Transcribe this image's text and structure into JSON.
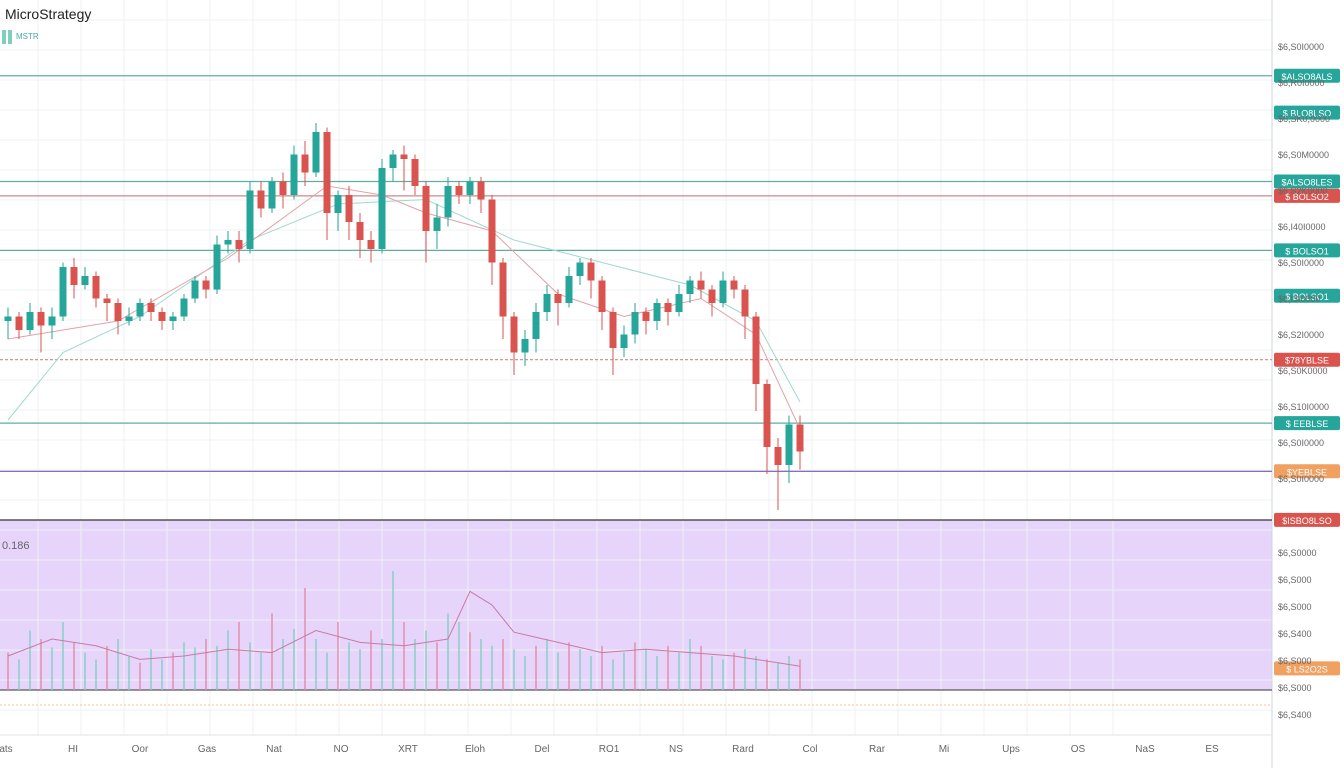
{
  "window": {
    "title": "MicroStrategy",
    "legend_line1": "MSTR",
    "legend_line2": "",
    "osc_value": "0.186"
  },
  "colors": {
    "up": "#26a69a",
    "down": "#d9534f",
    "grid": "#edf0f3",
    "teal_line": "#5fae9f",
    "red_line": "#c98a8a",
    "purple_line": "#7a5ab0",
    "osc_bg": "#e7d4fb",
    "badge_teal": "#26a69a",
    "badge_red": "#d9534f",
    "badge_orange": "#f0a060"
  },
  "chart_data": {
    "type": "candlestick",
    "price_ylim": [
      0,
      100
    ],
    "osc_ylim": [
      0,
      100
    ],
    "x_tick_labels": [
      "ats",
      "HI",
      "Oor",
      "Gas",
      "Nat",
      "NO",
      "XRT",
      "Eloh",
      "Del",
      "RO1",
      "NS",
      "Rard",
      "Col",
      "Rar",
      "Mi",
      "Ups",
      "OS",
      "NaS",
      "ES"
    ],
    "y_tick_labels": [
      "$6,S0I0000",
      "$6,R0I0000",
      "$6,SK0,0000",
      "$6,S0M0000",
      "$6,S2K0000",
      "$6,I40I0000",
      "$6,S0I0000",
      "$6,I3I0000",
      "$6,S2I0000",
      "$6,S0K0000",
      "$6,S10I0000",
      "$6,S0I0000",
      "$6,S0I0000"
    ],
    "osc_tick_labels": [
      "$6,S0000",
      "$6,S000",
      "$6,S000",
      "$6,S400",
      "$6,S000",
      "$6,S000",
      "$6,S400"
    ],
    "hlines": [
      {
        "label": "$ALSO8ALS",
        "level": 96.5,
        "color": "teal"
      },
      {
        "label": "$ALSO8LES",
        "level": 73,
        "color": "teal"
      },
      {
        "label": "$ BOLSO2",
        "level": 69.8,
        "color": "red"
      },
      {
        "label": "$ BOLSO1",
        "level": 57.7,
        "color": "teal"
      },
      {
        "label": "$78YBLSE",
        "level": 33.4,
        "color": "red",
        "dashed": true
      },
      {
        "label": "$ EEBLSE",
        "level": 19.3,
        "color": "teal"
      },
      {
        "label": "$YEBLSE",
        "level": 8.6,
        "color": "purple"
      }
    ],
    "extra_badges": [
      {
        "label": "$ BOLSO1",
        "level": 47.6,
        "color": "teal"
      },
      {
        "label": "$ BLO8LSO",
        "level": 88.3,
        "color": "teal"
      },
      {
        "label": "$ISBO8LSO",
        "level": -2.2,
        "color": "red"
      },
      {
        "label": "$ LS2O2S",
        "level": -35.2,
        "color": "orange"
      }
    ],
    "candles": [
      [
        0,
        42,
        43,
        45,
        38
      ],
      [
        1,
        43,
        40,
        44,
        38
      ],
      [
        2,
        40,
        44,
        46,
        39
      ],
      [
        3,
        44,
        41,
        45,
        35
      ],
      [
        4,
        41,
        43,
        45,
        38
      ],
      [
        5,
        43,
        54,
        55,
        42
      ],
      [
        6,
        54,
        50,
        56,
        47
      ],
      [
        7,
        50,
        52,
        54,
        49
      ],
      [
        8,
        52,
        47,
        53,
        45
      ],
      [
        9,
        47,
        46,
        48,
        42
      ],
      [
        10,
        46,
        42,
        47,
        39
      ],
      [
        11,
        42,
        43,
        45,
        41
      ],
      [
        12,
        43,
        46,
        47,
        42
      ],
      [
        13,
        46,
        44,
        47,
        42
      ],
      [
        14,
        44,
        42,
        45,
        40
      ],
      [
        15,
        42,
        43,
        44,
        40
      ],
      [
        16,
        43,
        47,
        48,
        42
      ],
      [
        17,
        47,
        51,
        52,
        46
      ],
      [
        18,
        51,
        49,
        52,
        47
      ],
      [
        19,
        49,
        59,
        61,
        48
      ],
      [
        20,
        59,
        60,
        62,
        57
      ],
      [
        21,
        60,
        58,
        62,
        55
      ],
      [
        22,
        58,
        71,
        73,
        57
      ],
      [
        23,
        71,
        67,
        73,
        65
      ],
      [
        24,
        67,
        73,
        74,
        66
      ],
      [
        25,
        73,
        70,
        75,
        67
      ],
      [
        26,
        70,
        79,
        81,
        69
      ],
      [
        27,
        79,
        75,
        82,
        72
      ],
      [
        28,
        75,
        84,
        86,
        74
      ],
      [
        29,
        84,
        66,
        85,
        60
      ],
      [
        30,
        66,
        70,
        71,
        62
      ],
      [
        31,
        70,
        64,
        72,
        60
      ],
      [
        32,
        64,
        60,
        66,
        56
      ],
      [
        33,
        60,
        58,
        62,
        55
      ],
      [
        34,
        58,
        76,
        78,
        57
      ],
      [
        35,
        76,
        79,
        80,
        73
      ],
      [
        36,
        79,
        78,
        81,
        71
      ],
      [
        37,
        78,
        72,
        79,
        70
      ],
      [
        38,
        72,
        62,
        73,
        55
      ],
      [
        39,
        62,
        65,
        68,
        58
      ],
      [
        40,
        65,
        72,
        74,
        63
      ],
      [
        41,
        72,
        70,
        73,
        68
      ],
      [
        42,
        70,
        73,
        74,
        68
      ],
      [
        43,
        73,
        69,
        74,
        66
      ],
      [
        44,
        69,
        55,
        70,
        50
      ],
      [
        45,
        55,
        43,
        56,
        38
      ],
      [
        46,
        43,
        35,
        44,
        30
      ],
      [
        47,
        35,
        38,
        40,
        32
      ],
      [
        48,
        38,
        44,
        46,
        35
      ],
      [
        49,
        44,
        48,
        50,
        42
      ],
      [
        50,
        48,
        46,
        49,
        41
      ],
      [
        51,
        46,
        52,
        54,
        45
      ],
      [
        52,
        52,
        55,
        56,
        50
      ],
      [
        53,
        55,
        51,
        56,
        47
      ],
      [
        54,
        51,
        44,
        52,
        40
      ],
      [
        55,
        44,
        36,
        45,
        30
      ],
      [
        56,
        36,
        39,
        41,
        34
      ],
      [
        57,
        39,
        44,
        46,
        37
      ],
      [
        58,
        44,
        42,
        45,
        39
      ],
      [
        59,
        42,
        46,
        47,
        40
      ],
      [
        60,
        46,
        44,
        47,
        41
      ],
      [
        61,
        44,
        48,
        50,
        43
      ],
      [
        62,
        48,
        51,
        52,
        46
      ],
      [
        63,
        51,
        49,
        53,
        47
      ],
      [
        64,
        49,
        46,
        50,
        43
      ],
      [
        65,
        46,
        51,
        53,
        45
      ],
      [
        66,
        51,
        49,
        52,
        47
      ],
      [
        67,
        49,
        43,
        50,
        38
      ],
      [
        68,
        43,
        28,
        44,
        22
      ],
      [
        69,
        28,
        14,
        29,
        8
      ],
      [
        70,
        14,
        10,
        16,
        0
      ],
      [
        71,
        10,
        19,
        21,
        6
      ],
      [
        72,
        19,
        13,
        21,
        9
      ]
    ],
    "ma_fast": [
      [
        0,
        38
      ],
      [
        10,
        42
      ],
      [
        20,
        56
      ],
      [
        29,
        72
      ],
      [
        34,
        70
      ],
      [
        38,
        66
      ],
      [
        44,
        62
      ],
      [
        50,
        48
      ],
      [
        56,
        43
      ],
      [
        63,
        47
      ],
      [
        68,
        39
      ],
      [
        72,
        18
      ]
    ],
    "ma_slow": [
      [
        0,
        20
      ],
      [
        5,
        35
      ],
      [
        12,
        43
      ],
      [
        22,
        60
      ],
      [
        30,
        68
      ],
      [
        38,
        69
      ],
      [
        46,
        60
      ],
      [
        54,
        55
      ],
      [
        62,
        50
      ],
      [
        68,
        42
      ],
      [
        72,
        24
      ]
    ],
    "osc_bars": [
      22,
      18,
      35,
      30,
      25,
      40,
      28,
      22,
      18,
      26,
      30,
      20,
      16,
      24,
      18,
      22,
      28,
      25,
      30,
      26,
      35,
      40,
      28,
      22,
      45,
      30,
      36,
      60,
      30,
      22,
      40,
      28,
      24,
      35,
      30,
      70,
      40,
      30,
      35,
      28,
      45,
      40,
      34,
      30,
      26,
      30,
      24,
      20,
      26,
      30,
      22,
      28,
      24,
      20,
      26,
      18,
      22,
      28,
      24,
      20,
      26,
      22,
      30,
      26,
      20,
      18,
      22,
      24,
      20,
      18,
      16,
      20,
      18
    ],
    "osc_line": [
      [
        0,
        20
      ],
      [
        4,
        30
      ],
      [
        8,
        26
      ],
      [
        12,
        18
      ],
      [
        16,
        20
      ],
      [
        20,
        24
      ],
      [
        24,
        22
      ],
      [
        28,
        35
      ],
      [
        32,
        28
      ],
      [
        36,
        26
      ],
      [
        40,
        30
      ],
      [
        42,
        58
      ],
      [
        44,
        50
      ],
      [
        46,
        34
      ],
      [
        50,
        28
      ],
      [
        54,
        22
      ],
      [
        58,
        24
      ],
      [
        62,
        22
      ],
      [
        66,
        20
      ],
      [
        70,
        16
      ],
      [
        72,
        14
      ]
    ]
  }
}
